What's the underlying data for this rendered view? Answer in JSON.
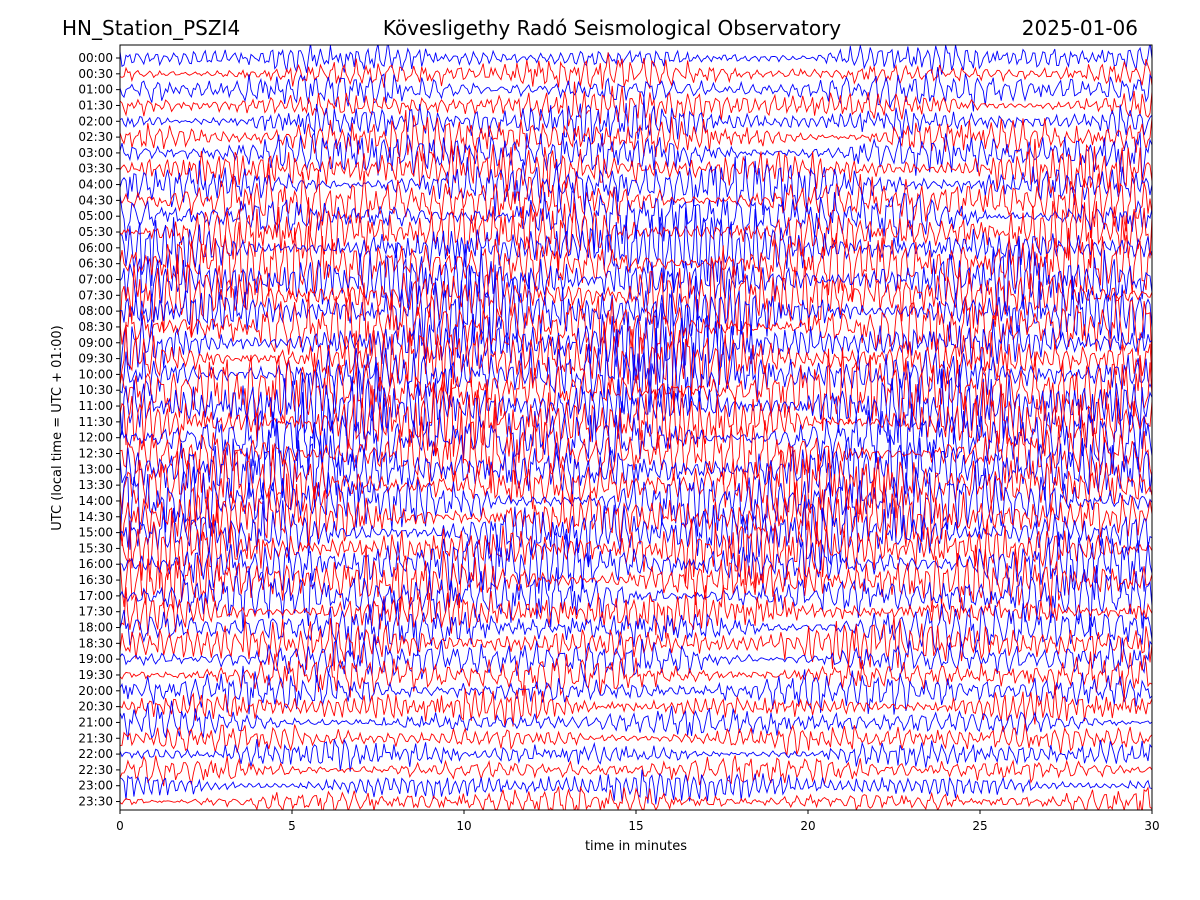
{
  "header": {
    "station": "HN_Station_PSZI4",
    "observatory": "Kövesligethy Radó Seismological Observatory",
    "date": "2025-01-06"
  },
  "chart_data": {
    "type": "line",
    "title": "Kövesligethy Radó Seismological Observatory",
    "xlabel": "time in minutes",
    "ylabel": "UTC (local time = UTC + 01:00)",
    "xlim": [
      0,
      30
    ],
    "x_ticks": [
      "0",
      "5",
      "10",
      "15",
      "20",
      "25",
      "30"
    ],
    "x_tick_values": [
      0,
      5,
      10,
      15,
      20,
      25,
      30
    ],
    "y_ticks": [
      "00:00",
      "00:30",
      "01:00",
      "01:30",
      "02:00",
      "02:30",
      "03:00",
      "03:30",
      "04:00",
      "04:30",
      "05:00",
      "05:30",
      "06:00",
      "06:30",
      "07:00",
      "07:30",
      "08:00",
      "08:30",
      "09:00",
      "09:30",
      "10:00",
      "10:30",
      "11:00",
      "11:30",
      "12:00",
      "12:30",
      "13:00",
      "13:30",
      "14:00",
      "14:30",
      "15:00",
      "15:30",
      "16:00",
      "16:30",
      "17:00",
      "17:30",
      "18:00",
      "18:30",
      "19:00",
      "19:30",
      "20:00",
      "20:30",
      "21:00",
      "21:30",
      "22:00",
      "22:30",
      "23:00",
      "23:30"
    ],
    "trace_colors": [
      "#0000ff",
      "#ff0000"
    ],
    "grid": false,
    "legend": "none"
  }
}
